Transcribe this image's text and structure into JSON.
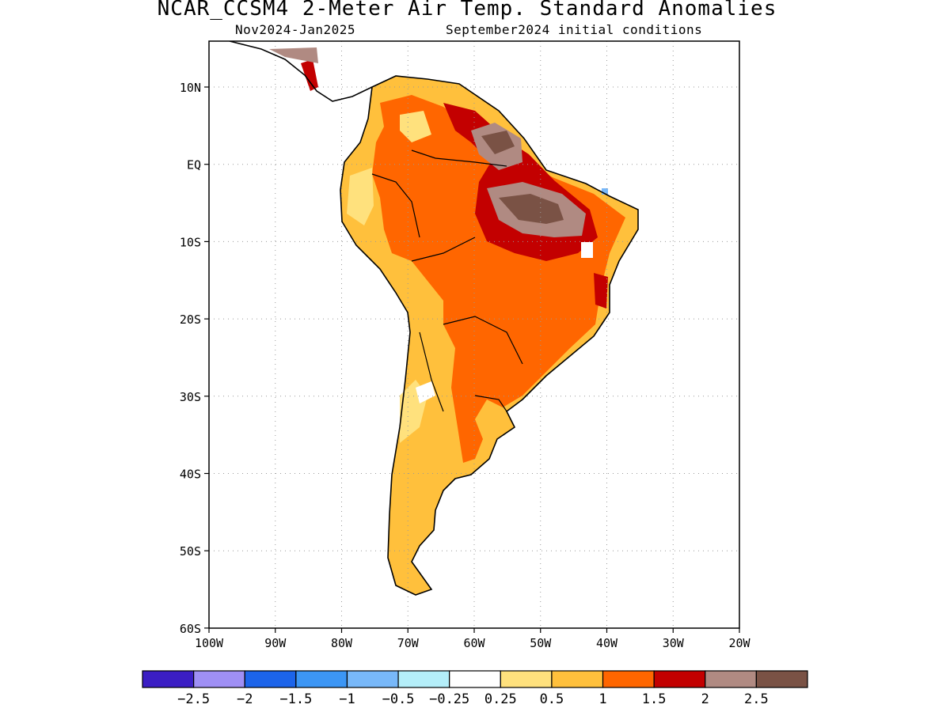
{
  "title": "NCAR_CCSM4 2-Meter Air Temp. Standard Anomalies",
  "subtitle_left": "Nov2024-Jan2025",
  "subtitle_right": "September2024 initial conditions",
  "map": {
    "lon_labels": [
      "100W",
      "90W",
      "80W",
      "70W",
      "60W",
      "50W",
      "40W",
      "30W",
      "20W"
    ],
    "lat_labels": [
      "10N",
      "EQ",
      "10S",
      "20S",
      "30S",
      "40S",
      "50S",
      "60S"
    ],
    "region": "South America"
  },
  "colorbar": {
    "colors": [
      "#3b1ec4",
      "#9f8ff5",
      "#1c64ea",
      "#3c96f5",
      "#78b8f9",
      "#b4eef9",
      "#ffffff",
      "#ffe17d",
      "#ffc03c",
      "#ff6600",
      "#c30000",
      "#b08a82",
      "#7a5245"
    ],
    "labels": [
      "-2.5",
      "-2",
      "-1.5",
      "-1",
      "-0.5",
      "-0.25",
      "0.25",
      "0.5",
      "1",
      "1.5",
      "2",
      "2.5"
    ]
  }
}
